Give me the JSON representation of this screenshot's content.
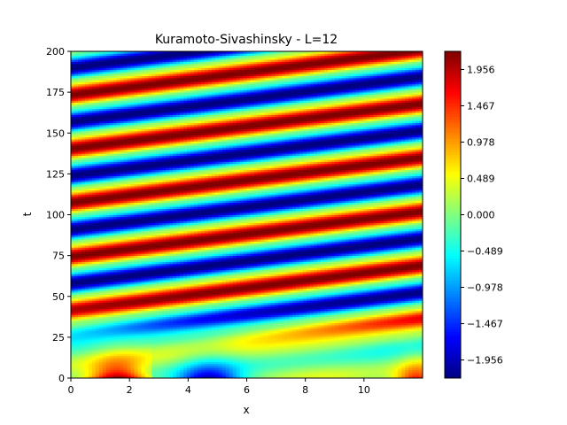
{
  "chart_data": {
    "type": "heatmap",
    "title": "Kuramoto-Sivashinsky - L=12",
    "xlabel": "x",
    "ylabel": "t",
    "xlim": [
      0,
      12
    ],
    "ylim": [
      0,
      200
    ],
    "x_ticks": [
      0,
      2,
      4,
      6,
      8,
      10
    ],
    "y_ticks": [
      0,
      25,
      50,
      75,
      100,
      125,
      150,
      175,
      200
    ],
    "x_tick_labels": [
      "0",
      "2",
      "4",
      "6",
      "8",
      "10"
    ],
    "y_tick_labels": [
      "0",
      "25",
      "50",
      "75",
      "100",
      "125",
      "150",
      "175",
      "200"
    ],
    "colormap": "jet",
    "value_range": [
      -2.2,
      2.2
    ],
    "colorbar_ticks": [
      1.956,
      1.467,
      0.978,
      0.489,
      0.0,
      -0.489,
      -0.978,
      -1.467,
      -1.956
    ],
    "colorbar_tick_labels": [
      "1.956",
      "1.467",
      "0.978",
      "0.489",
      "0.000",
      "−0.489",
      "−0.978",
      "−1.467",
      "−1.956"
    ],
    "grid": false,
    "pattern": {
      "traveling_wave_period_t": 33,
      "wave_drift_dt_per_dx": 2.3,
      "transient_end_t": 30
    }
  }
}
